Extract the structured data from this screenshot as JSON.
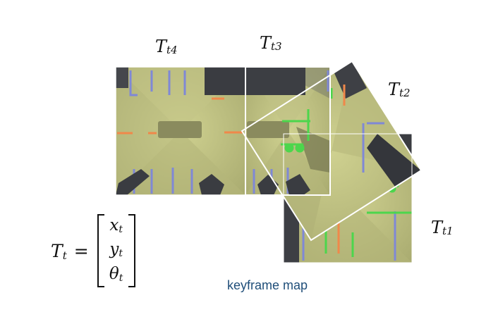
{
  "labels": {
    "t4": {
      "main": "T",
      "sub": "t4"
    },
    "t3": {
      "main": "T",
      "sub": "t3"
    },
    "t2": {
      "main": "T",
      "sub": "t2"
    },
    "t1": {
      "main": "T",
      "sub": "t1"
    }
  },
  "formula": {
    "lhs_main": "T",
    "lhs_sub": "t",
    "equals": "=",
    "entries": [
      {
        "main": "x",
        "sub": "t"
      },
      {
        "main": "y",
        "sub": "t"
      },
      {
        "main": "θ",
        "sub": "t"
      }
    ]
  },
  "caption": "keyframe map",
  "colors": {
    "floor": "#c7c98a",
    "floor_dark": "#a3a46a",
    "lane": "#7f88d6",
    "marker_orange": "#f0884a",
    "marker_green": "#4cd64c",
    "obstacle": "#3a3c41",
    "frame_border": "#ffffff",
    "caption": "#1f4e79"
  }
}
